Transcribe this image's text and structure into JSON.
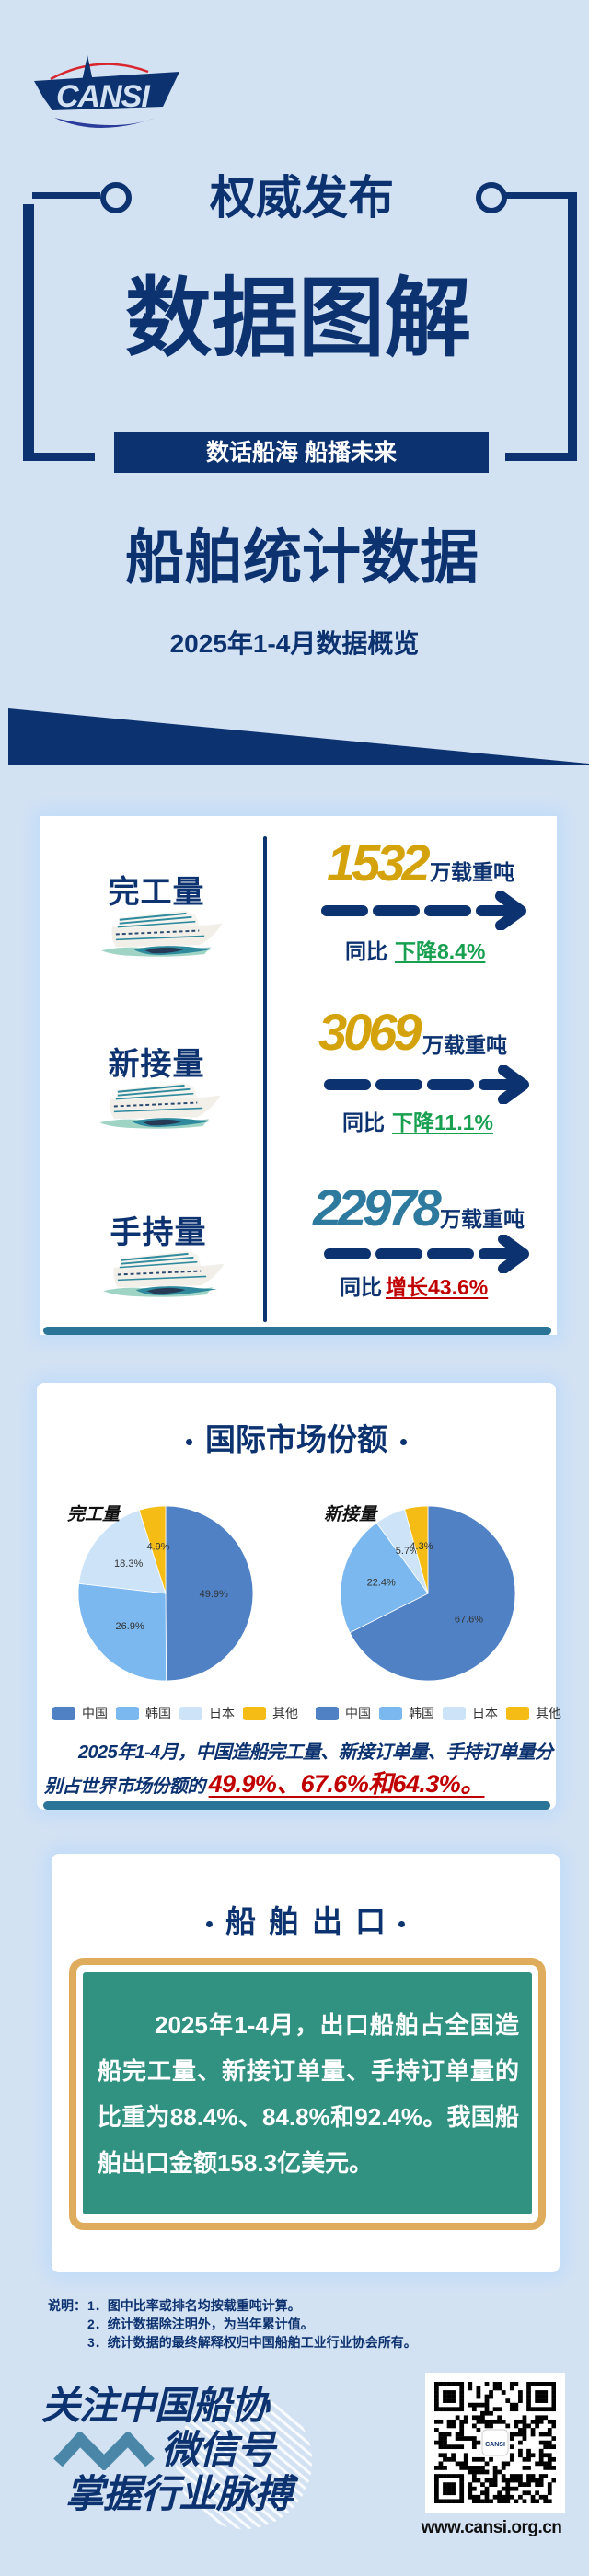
{
  "logo": {
    "text": "CANSI"
  },
  "hero": {
    "kicker": "权威发布",
    "title": "数据图解",
    "banner": "数话船海 船播未来",
    "heading": "船舶统计数据",
    "subheading": "2025年1-4月数据概览"
  },
  "volumes": {
    "items": [
      {
        "label": "完工量",
        "value": "1532",
        "unit": "万载重吨",
        "yoy_prefix": "同比",
        "yoy_change": "下降8.4%",
        "trend": "down",
        "value_color": "#d4a20a",
        "change_color": "#18a050"
      },
      {
        "label": "新接量",
        "value": "3069",
        "unit": "万载重吨",
        "yoy_prefix": "同比",
        "yoy_change": "下降11.1%",
        "trend": "down",
        "value_color": "#d4a20a",
        "change_color": "#18a050"
      },
      {
        "label": "手持量",
        "value": "22978",
        "unit": "万载重吨",
        "yoy_prefix": "同比",
        "yoy_change": "增长43.6%",
        "trend": "up",
        "value_color": "#2e7a9e",
        "change_color": "#c00000"
      }
    ]
  },
  "market_share": {
    "title": "国际市场份额",
    "summary_text": "2025年1-4月，中国造船完工量、新接订单量、手持订单量分别占世界市场份额的",
    "summary_highlight": "49.9%、67.6%和64.3%。"
  },
  "chart_data": [
    {
      "type": "pie",
      "title": "完工量",
      "categories": [
        "中国",
        "韩国",
        "日本",
        "其他"
      ],
      "values": [
        49.9,
        26.9,
        18.3,
        4.9
      ],
      "unit": "%",
      "colors": [
        "#4f81c4",
        "#7ab8ef",
        "#cde4f8",
        "#f5bc15"
      ],
      "legend": "bottom"
    },
    {
      "type": "pie",
      "title": "新接量",
      "categories": [
        "中国",
        "韩国",
        "日本",
        "其他"
      ],
      "values": [
        67.6,
        22.4,
        5.7,
        4.3
      ],
      "unit": "%",
      "colors": [
        "#4f81c4",
        "#7ab8ef",
        "#cde4f8",
        "#f5bc15"
      ],
      "legend": "bottom"
    }
  ],
  "export": {
    "title": "船舶出口",
    "text": "2025年1-4月，出口船舶占全国造船完工量、新接订单量、手持订单量的比重为88.4%、84.8%和92.4%。我国船舶出口金额158.3亿美元。"
  },
  "notes": {
    "label": "说明：",
    "items": [
      "1．图中比率或排名均按载重吨计算。",
      "2．统计数据除注明外，为当年累计值。",
      "3．统计数据的最终解释权归中国船舶工业行业协会所有。"
    ]
  },
  "footer": {
    "slogan_line1": "关注中国船协",
    "slogan_line2": "微信号",
    "slogan_line3": "掌握行业脉搏",
    "website": "www.cansi.org.cn",
    "qr_icon": "qr-code"
  },
  "colors": {
    "navy": "#0d3270",
    "teal": "#329282",
    "gold": "#dfac5e",
    "background": "#d3e2f3"
  }
}
